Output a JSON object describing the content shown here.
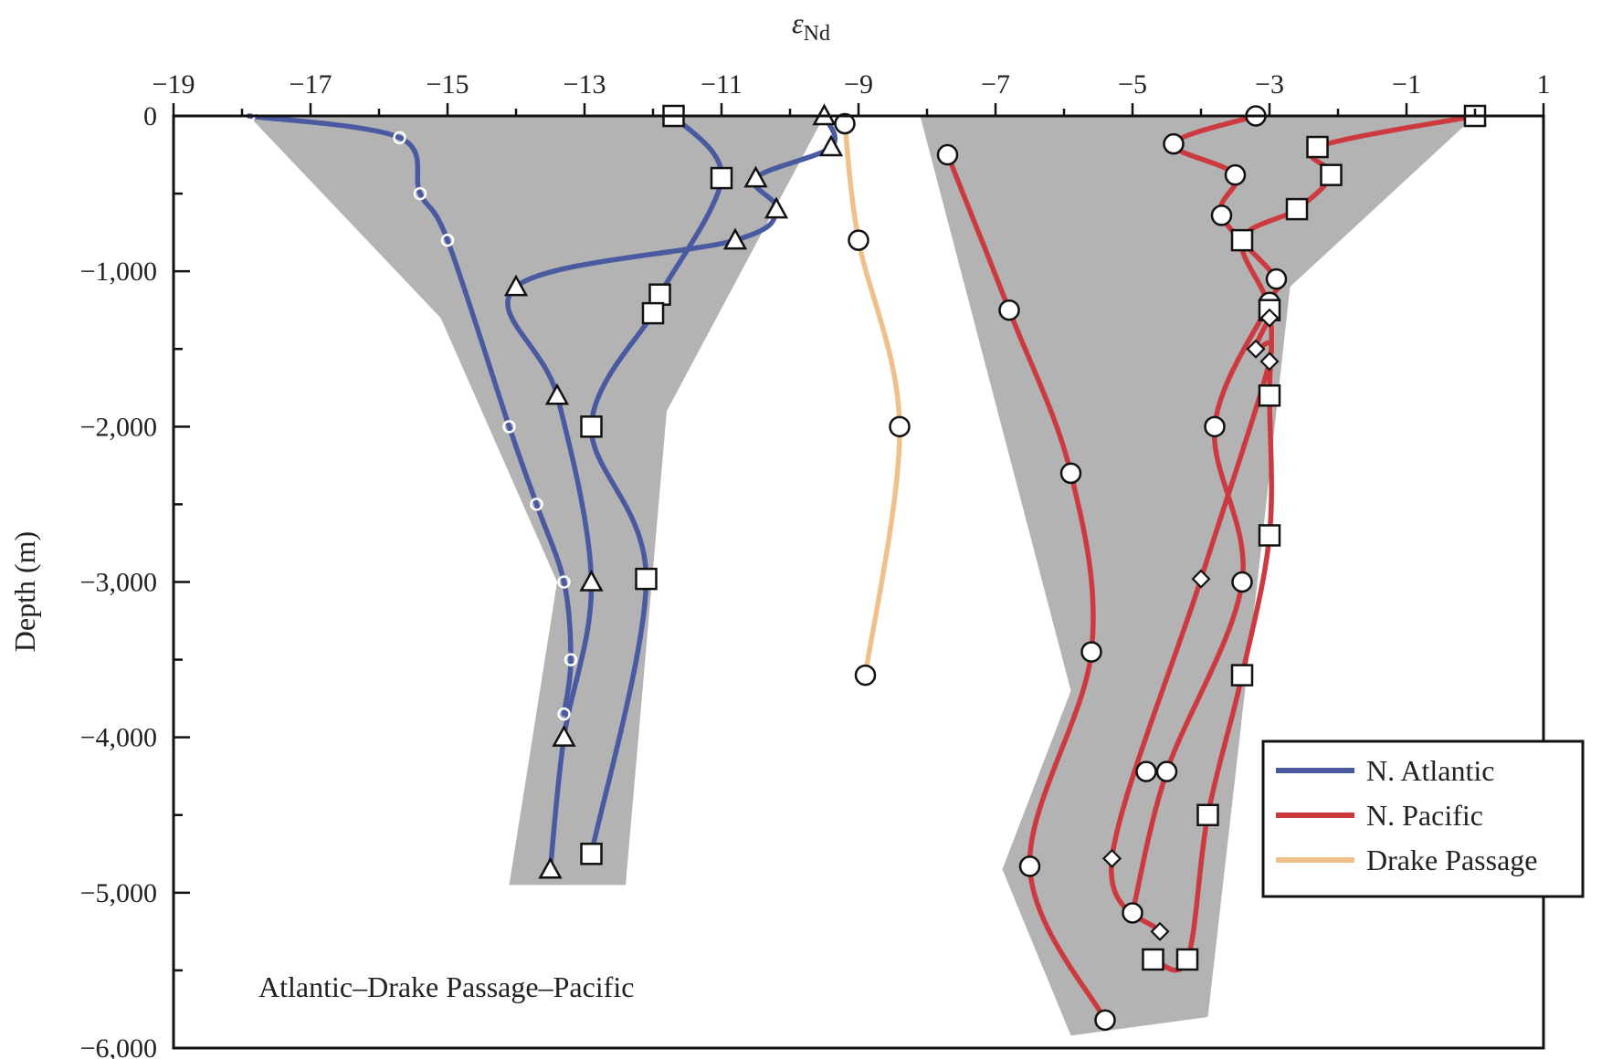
{
  "chart_data": {
    "type": "line",
    "title": "",
    "xlabel": "εNd",
    "ylabel": "Depth (m)",
    "xlim": [
      -19,
      1
    ],
    "ylim": [
      -6000,
      0
    ],
    "x_tick_labels": [
      "−19",
      "−17",
      "−15",
      "−13",
      "−11",
      "−9",
      "−7",
      "−5",
      "−3",
      "−1",
      "1"
    ],
    "y_tick_labels": [
      "0",
      "−1,000",
      "−2,000",
      "−3,000",
      "−4,000",
      "−5,000",
      "−6,000"
    ],
    "grid": false,
    "legend_position": "bottom-right",
    "legend": [
      {
        "name": "N. Atlantic",
        "color": "#4a5aa0"
      },
      {
        "name": "N. Pacific",
        "color": "#cc3a3f"
      },
      {
        "name": "Drake Passage",
        "color": "#f0c08a"
      }
    ],
    "annotation": "Atlantic–Drake Passage–Pacific",
    "range_fill_color": "#b3b3b3",
    "range_envelopes": [
      {
        "region": "N. Atlantic",
        "points": [
          [
            -17.9,
            0
          ],
          [
            -9.5,
            0
          ],
          [
            -11.8,
            -1900
          ],
          [
            -12.4,
            -4950
          ],
          [
            -14.1,
            -4950
          ],
          [
            -13.4,
            -3000
          ],
          [
            -15.1,
            -1300
          ]
        ]
      },
      {
        "region": "N. Pacific",
        "points": [
          [
            -8.1,
            0
          ],
          [
            0.0,
            0
          ],
          [
            -2.7,
            -1100
          ],
          [
            -3.1,
            -2700
          ],
          [
            -3.9,
            -5800
          ],
          [
            -5.9,
            -5920
          ],
          [
            -6.9,
            -4850
          ],
          [
            -5.9,
            -3700
          ]
        ]
      }
    ],
    "series": [
      {
        "name": "N. Atlantic",
        "region": "N. Atlantic",
        "marker": "small-circle",
        "points": [
          [
            -17.9,
            0
          ],
          [
            -15.7,
            -140
          ],
          [
            -15.4,
            -500
          ],
          [
            -15.0,
            -800
          ],
          [
            -14.1,
            -2000
          ],
          [
            -13.7,
            -2500
          ],
          [
            -13.3,
            -3000
          ],
          [
            -13.2,
            -3500
          ],
          [
            -13.3,
            -3850
          ]
        ]
      },
      {
        "region": "N. Atlantic",
        "marker": "square",
        "points": [
          [
            -11.7,
            0
          ],
          [
            -11.0,
            -400
          ],
          [
            -11.9,
            -1150
          ],
          [
            -12.0,
            -1270
          ],
          [
            -12.9,
            -2000
          ],
          [
            -12.1,
            -2980
          ],
          [
            -12.9,
            -4750
          ]
        ]
      },
      {
        "region": "N. Atlantic",
        "marker": "triangle",
        "points": [
          [
            -9.5,
            0
          ],
          [
            -9.4,
            -200
          ],
          [
            -10.5,
            -400
          ],
          [
            -10.2,
            -600
          ],
          [
            -10.8,
            -800
          ],
          [
            -14.0,
            -1100
          ],
          [
            -13.4,
            -1800
          ],
          [
            -12.9,
            -3000
          ],
          [
            -13.3,
            -4000
          ],
          [
            -13.5,
            -4850
          ]
        ]
      },
      {
        "name": "Drake Passage",
        "region": "Drake Passage",
        "marker": "circle",
        "points": [
          [
            -9.2,
            -50
          ],
          [
            -9.0,
            -800
          ],
          [
            -8.4,
            -2000
          ],
          [
            -8.9,
            -3600
          ]
        ]
      },
      {
        "name": "N. Pacific",
        "region": "N. Pacific",
        "marker": "circle",
        "points": [
          [
            -7.7,
            -250
          ],
          [
            -6.8,
            -1250
          ],
          [
            -5.9,
            -2300
          ],
          [
            -5.6,
            -3450
          ],
          [
            -6.5,
            -4830
          ],
          [
            -5.4,
            -5820
          ]
        ]
      },
      {
        "region": "N. Pacific",
        "marker": "circle",
        "points": [
          [
            -3.2,
            0
          ],
          [
            -4.4,
            -180
          ],
          [
            -3.5,
            -380
          ],
          [
            -3.7,
            -640
          ],
          [
            -2.9,
            -1050
          ],
          [
            -3.0,
            -1200
          ],
          [
            -3.8,
            -2000
          ],
          [
            -3.4,
            -3000
          ],
          [
            -4.5,
            -4220
          ],
          [
            -5.0,
            -5130
          ]
        ]
      },
      {
        "region": "N. Pacific",
        "marker": "circle",
        "points": [
          [
            -4.8,
            -4220
          ]
        ]
      },
      {
        "region": "N. Pacific",
        "marker": "square",
        "points": [
          [
            0.0,
            0
          ],
          [
            -2.3,
            -200
          ],
          [
            -2.1,
            -380
          ],
          [
            -2.6,
            -600
          ],
          [
            -3.4,
            -800
          ],
          [
            -3.0,
            -1250
          ],
          [
            -3.0,
            -1800
          ],
          [
            -3.0,
            -2700
          ],
          [
            -3.4,
            -3600
          ],
          [
            -3.9,
            -4500
          ],
          [
            -4.2,
            -5430
          ],
          [
            -4.7,
            -5430
          ]
        ]
      },
      {
        "region": "N. Pacific",
        "marker": "diamond",
        "points": [
          [
            -3.0,
            -1300
          ],
          [
            -3.2,
            -1500
          ],
          [
            -3.0,
            -1580
          ],
          [
            -4.0,
            -2980
          ],
          [
            -5.3,
            -4780
          ],
          [
            -4.6,
            -5250
          ]
        ]
      }
    ]
  }
}
